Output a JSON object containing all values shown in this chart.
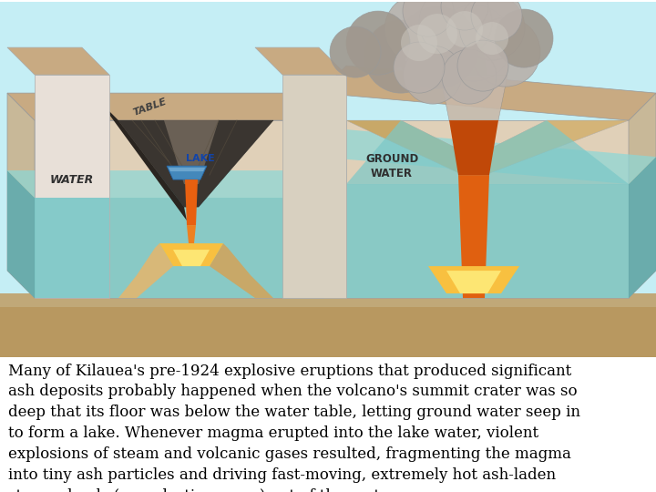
{
  "bg_sky": "#c5eef5",
  "bg_ground": "#c8aa82",
  "bg_text": "#ffffff",
  "water_color": "#7ac8c8",
  "water_dark": "#5aabb0",
  "ground_top": "#c8aa82",
  "ground_face": "#b89a72",
  "ground_side": "#a8865a",
  "crater_dark": "#3a3530",
  "crater_mid": "#6a6055",
  "lava_orange": "#e86010",
  "lava_red": "#c84000",
  "lava_yellow": "#f8c040",
  "cloud_light": "#b8b0aa",
  "cloud_mid": "#a0988e",
  "cloud_dark": "#888078",
  "eruption_col": "#c0b8b0",
  "wall_light": "#e0d0b8",
  "wall_mid": "#c8b898",
  "wall_box": "#d8cdb8",
  "text_content": "Many of Kilauea's pre-1924 explosive eruptions that produced significant\nash deposits probably happened when the volcano's summit crater was so\ndeep that its floor was below the water table, letting ground water seep in\nto form a lake. Whenever magma erupted into the lake water, violent\nexplosions of steam and volcanic gases resulted, fragmenting the magma\ninto tiny ash particles and driving fast-moving, extremely hot ash-laden\nsteam clouds (pyroclastic surges) out of the crater.",
  "text_fontsize": 12,
  "fig_width": 7.2,
  "fig_height": 5.4,
  "dpi": 100
}
